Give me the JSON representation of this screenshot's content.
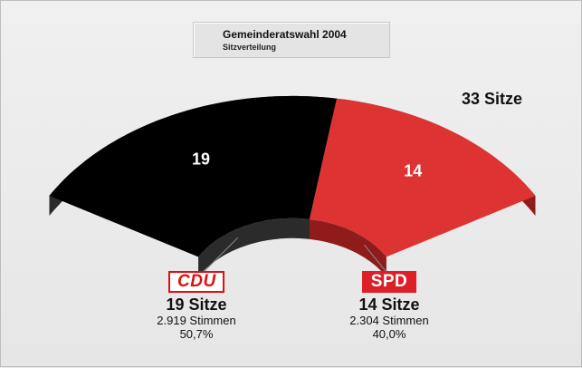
{
  "chart_data": {
    "type": "parliament-arc",
    "title": "Gemeinderatswahl 2004",
    "subtitle": "Sitzverteilung",
    "total_label": "33 Sitze",
    "total_seats": 33,
    "series": [
      {
        "name": "CDU",
        "seats": 19,
        "seats_label": "19",
        "seats_text": "19 Sitze",
        "votes_text": "2.919 Stimmen",
        "percent_text": "50,7%",
        "percent": 50.7,
        "color": "#000000",
        "side_color": "#2b2b2b"
      },
      {
        "name": "SPD",
        "seats": 14,
        "seats_label": "14",
        "seats_text": "14 Sitze",
        "votes_text": "2.304 Stimmen",
        "percent_text": "40,0%",
        "percent": 40.0,
        "color": "#dd3333",
        "side_color": "#8f1b1b"
      }
    ]
  }
}
